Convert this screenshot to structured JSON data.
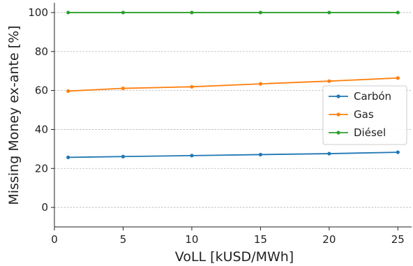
{
  "chart_data": {
    "type": "line",
    "title": "",
    "xlabel": "VoLL [kUSD/MWh]",
    "ylabel": "Missing Money ex-ante [%]",
    "x": [
      1,
      5,
      10,
      15,
      20,
      25
    ],
    "xlim": [
      0,
      26
    ],
    "ylim": [
      -10,
      105
    ],
    "xticks": [
      0,
      5,
      10,
      15,
      20,
      25
    ],
    "yticks": [
      0,
      20,
      40,
      60,
      80,
      100
    ],
    "grid": "horizontal-dashed",
    "legend_position": "center-right",
    "series": [
      {
        "name": "Carbón",
        "color": "#1f77b4",
        "values": [
          25.7,
          26.1,
          26.6,
          27.1,
          27.6,
          28.3
        ]
      },
      {
        "name": "Gas",
        "color": "#ff7f0e",
        "values": [
          59.7,
          61.1,
          61.9,
          63.4,
          64.8,
          66.4
        ]
      },
      {
        "name": "Diésel",
        "color": "#2ca02c",
        "values": [
          100,
          100,
          100,
          100,
          100,
          100
        ]
      }
    ]
  }
}
